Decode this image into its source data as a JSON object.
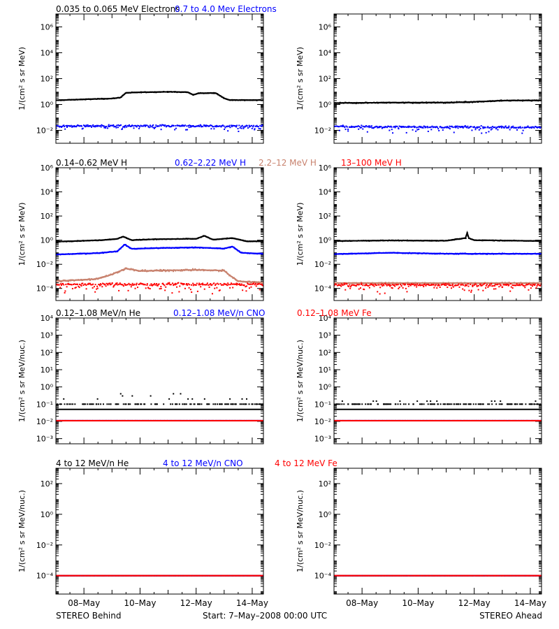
{
  "rows": [
    {
      "title_segments": [
        {
          "text": "0.035 to 0.065 MeV Electrons",
          "color": "#000000"
        },
        {
          "text": "0.7 to 4.0 Mev Electrons",
          "color": "#0000ff"
        }
      ],
      "ylabel": "1/(cm² s sr MeV)",
      "yticks": [
        {
          "label": "10⁶",
          "exp": 6
        },
        {
          "label": "10⁴",
          "exp": 4
        },
        {
          "label": "10²",
          "exp": 2
        },
        {
          "label": "10⁰",
          "exp": 0
        },
        {
          "label": "10⁻²",
          "exp": -2
        }
      ]
    },
    {
      "title_segments": [
        {
          "text": "0.14–0.62 MeV H",
          "color": "#000000"
        },
        {
          "text": "0.62–2.22 MeV H",
          "color": "#0000ff"
        },
        {
          "text": "2.2–12 MeV H",
          "color": "#c8826e"
        },
        {
          "text": "13–100 MeV H",
          "color": "#ff0000"
        }
      ],
      "ylabel": "1/(cm² s sr MeV)",
      "yticks": [
        {
          "label": "10⁶",
          "exp": 6
        },
        {
          "label": "10⁴",
          "exp": 4
        },
        {
          "label": "10²",
          "exp": 2
        },
        {
          "label": "10⁰",
          "exp": 0
        },
        {
          "label": "10⁻²",
          "exp": -2
        },
        {
          "label": "10⁻⁴",
          "exp": -4
        }
      ]
    },
    {
      "title_segments": [
        {
          "text": "0.12–1.08 MeV/n He",
          "color": "#000000"
        },
        {
          "text": "0.12–1.08 MeV/n CNO",
          "color": "#0000ff"
        },
        {
          "text": "0.12–1.08 MeV Fe",
          "color": "#ff0000"
        }
      ],
      "ylabel": "1/(cm² s sr MeV/nuc.)",
      "yticks": [
        {
          "label": "10⁴",
          "exp": 4
        },
        {
          "label": "10³",
          "exp": 3
        },
        {
          "label": "10²",
          "exp": 2
        },
        {
          "label": "10¹",
          "exp": 1
        },
        {
          "label": "10⁰",
          "exp": 0
        },
        {
          "label": "10⁻¹",
          "exp": -1
        },
        {
          "label": "10⁻²",
          "exp": -2
        },
        {
          "label": "10⁻³",
          "exp": -3
        }
      ]
    },
    {
      "title_segments": [
        {
          "text": "4 to 12 MeV/n He",
          "color": "#000000"
        },
        {
          "text": "4 to 12 MeV/n CNO",
          "color": "#0000ff"
        },
        {
          "text": "4 to 12 MeV Fe",
          "color": "#ff0000"
        }
      ],
      "ylabel": "1/(cm² s sr MeV/nuc.)",
      "yticks": [
        {
          "label": "10²",
          "exp": 2
        },
        {
          "label": "10⁰",
          "exp": 0
        },
        {
          "label": "10⁻²",
          "exp": -2
        },
        {
          "label": "10⁻⁴",
          "exp": -4
        }
      ]
    }
  ],
  "xticks": [
    {
      "label": "08–May",
      "day": 1
    },
    {
      "label": "10–May",
      "day": 3
    },
    {
      "label": "12–May",
      "day": 5
    },
    {
      "label": "14–May",
      "day": 7
    }
  ],
  "footer": {
    "left": "STEREO Behind",
    "center": "Start:  7–May–2008 00:00 UTC",
    "right": "STEREO Ahead"
  },
  "chart_data": [
    {
      "type": "scatter",
      "spacecraft": "STEREO Behind",
      "panel": "electrons",
      "x_unit": "days since 7-May-2008 00:00 UTC",
      "xlim": [
        0,
        7.4
      ],
      "ylog": true,
      "ylim_exp": [
        -3,
        7
      ],
      "series": [
        {
          "name": "0.035 to 0.065 MeV Electrons",
          "color": "#000000",
          "noise": 0.03,
          "scatter": 0.01,
          "x": [
            0,
            1,
            2,
            2.3,
            2.5,
            3,
            4,
            4.7,
            4.9,
            5.1,
            5.7,
            6,
            6.2,
            7.4
          ],
          "y": [
            2.1,
            2.5,
            2.9,
            3.4,
            8,
            8.8,
            9.5,
            9,
            5.5,
            7.5,
            7.8,
            3,
            2.2,
            2.2
          ]
        },
        {
          "name": "0.7 to 4.0 Mev Electrons",
          "color": "#0000ff",
          "noise": 0.1,
          "scatter": 0.25,
          "x": [
            0,
            7.4
          ],
          "y": [
            0.022,
            0.022
          ]
        }
      ]
    },
    {
      "type": "scatter",
      "spacecraft": "STEREO Ahead",
      "panel": "electrons",
      "x_unit": "days since 7-May-2008 00:00 UTC",
      "xlim": [
        0,
        7.4
      ],
      "ylog": true,
      "ylim_exp": [
        -3,
        7
      ],
      "series": [
        {
          "name": "0.035 to 0.065 MeV Electrons",
          "color": "#000000",
          "noise": 0.04,
          "scatter": 0.02,
          "x": [
            0,
            2,
            4,
            5,
            6,
            7.4
          ],
          "y": [
            1.3,
            1.4,
            1.4,
            1.6,
            2.0,
            2.1
          ]
        },
        {
          "name": "0.7 to 4.0 Mev Electrons",
          "color": "#0000ff",
          "noise": 0.1,
          "scatter": 0.25,
          "x": [
            0,
            7.4
          ],
          "y": [
            0.02,
            0.017
          ]
        }
      ]
    },
    {
      "type": "scatter",
      "spacecraft": "STEREO Behind",
      "panel": "protons",
      "x_unit": "days since 7-May-2008 00:00 UTC",
      "xlim": [
        0,
        7.4
      ],
      "ylog": true,
      "ylim_exp": [
        -5,
        6
      ],
      "series": [
        {
          "name": "0.14-0.62 MeV H",
          "color": "#000000",
          "noise": 0.03,
          "scatter": 0.01,
          "x": [
            0,
            1.6,
            2.2,
            2.4,
            2.7,
            3.5,
            5,
            5.3,
            5.6,
            6.3,
            6.8,
            7.4
          ],
          "y": [
            0.75,
            1.0,
            1.3,
            2.0,
            1.0,
            1.2,
            1.3,
            2.3,
            1.1,
            1.5,
            0.8,
            0.8
          ]
        },
        {
          "name": "0.62-2.22 MeV H",
          "color": "#0000ff",
          "noise": 0.04,
          "scatter": 0.01,
          "x": [
            0,
            1.5,
            2.2,
            2.45,
            2.7,
            3.5,
            5,
            6,
            6.3,
            6.6,
            7.4
          ],
          "y": [
            0.065,
            0.085,
            0.12,
            0.45,
            0.19,
            0.22,
            0.25,
            0.2,
            0.3,
            0.09,
            0.075
          ]
        },
        {
          "name": "2.2-12 MeV H",
          "color": "#c8826e",
          "noise": 0.08,
          "scatter": 0.03,
          "x": [
            0,
            1.4,
            1.9,
            2.5,
            3.0,
            5.0,
            6.0,
            6.2,
            6.5,
            7.4
          ],
          "y": [
            0.0004,
            0.0006,
            0.0012,
            0.0045,
            0.0028,
            0.0035,
            0.003,
            0.0012,
            0.0004,
            0.0003
          ]
        },
        {
          "name": "13-100 MeV H",
          "color": "#ff0000",
          "noise": 0.12,
          "scatter": 0.4,
          "x": [
            0,
            7.4
          ],
          "y": [
            0.00022,
            0.00022
          ]
        }
      ]
    },
    {
      "type": "scatter",
      "spacecraft": "STEREO Ahead",
      "panel": "protons",
      "x_unit": "days since 7-May-2008 00:00 UTC",
      "xlim": [
        0,
        7.4
      ],
      "ylog": true,
      "ylim_exp": [
        -5,
        6
      ],
      "series": [
        {
          "name": "0.14-0.62 MeV H",
          "color": "#000000",
          "noise": 0.03,
          "scatter": 0.01,
          "x": [
            0,
            2,
            4,
            4.7,
            4.75,
            4.8,
            5,
            7.4
          ],
          "y": [
            0.85,
            0.95,
            0.9,
            1.5,
            4.2,
            1.5,
            1.0,
            0.85
          ]
        },
        {
          "name": "0.62-2.22 MeV H",
          "color": "#0000ff",
          "noise": 0.04,
          "scatter": 0.01,
          "x": [
            0,
            2,
            4,
            7.4
          ],
          "y": [
            0.07,
            0.09,
            0.075,
            0.075
          ]
        },
        {
          "name": "2.2-12 MeV H",
          "color": "#c8826e",
          "noise": 0.05,
          "scatter": 0.02,
          "x": [
            0,
            7.4
          ],
          "y": [
            0.00028,
            0.00028
          ]
        },
        {
          "name": "13-100 MeV H",
          "color": "#ff0000",
          "noise": 0.12,
          "scatter": 0.4,
          "x": [
            0,
            7.4
          ],
          "y": [
            0.0002,
            0.0002
          ]
        }
      ]
    },
    {
      "type": "scatter",
      "spacecraft": "STEREO Behind",
      "panel": "heavy-ions-low",
      "x_unit": "days since 7-May-2008 00:00 UTC",
      "xlim": [
        0,
        7.4
      ],
      "ylog": true,
      "ylim_exp": [
        -3.3,
        4
      ],
      "series": [
        {
          "name": "0.12-1.08 MeV/n He",
          "color": "#000000",
          "noise": 0.02,
          "scatter": 0.0,
          "quantized": [
            0.1,
            0.2,
            0.3,
            0.4
          ],
          "x": [
            0,
            7.4
          ],
          "y": [
            0.1,
            0.1
          ]
        },
        {
          "name": "0.12-1.08 MeV/n CNO",
          "color": "#0000ff",
          "noise": 0.0,
          "scatter": 0.0,
          "x": [
            0,
            7.4
          ],
          "y": [
            0.011,
            0.011
          ]
        },
        {
          "name": "0.12-1.08 MeV Fe",
          "color": "#ff0000",
          "noise": 0.0,
          "scatter": 0.0,
          "x": [
            0,
            7.4
          ],
          "y": [
            0.011,
            0.011
          ]
        }
      ]
    },
    {
      "type": "scatter",
      "spacecraft": "STEREO Ahead",
      "panel": "heavy-ions-low",
      "x_unit": "days since 7-May-2008 00:00 UTC",
      "xlim": [
        0,
        7.4
      ],
      "ylog": true,
      "ylim_exp": [
        -3.3,
        4
      ],
      "series": [
        {
          "name": "0.12-1.08 MeV/n He",
          "color": "#000000",
          "noise": 0.02,
          "scatter": 0.0,
          "quantized": [
            0.1,
            0.15
          ],
          "x": [
            0,
            7.4
          ],
          "y": [
            0.1,
            0.1
          ]
        },
        {
          "name": "0.12-1.08 MeV/n CNO",
          "color": "#0000ff",
          "noise": 0.0,
          "scatter": 0.0,
          "x": [
            0,
            7.4
          ],
          "y": [
            0.011,
            0.011
          ]
        },
        {
          "name": "0.12-1.08 MeV Fe",
          "color": "#ff0000",
          "noise": 0.0,
          "scatter": 0.0,
          "x": [
            0,
            7.4
          ],
          "y": [
            0.011,
            0.011
          ]
        }
      ]
    },
    {
      "type": "scatter",
      "spacecraft": "STEREO Behind",
      "panel": "heavy-ions-high",
      "x_unit": "days since 7-May-2008 00:00 UTC",
      "xlim": [
        0,
        7.4
      ],
      "ylog": true,
      "ylim_exp": [
        -5.2,
        3
      ],
      "series": [
        {
          "name": "4 to 12 MeV/n He",
          "color": "#000000",
          "noise": 0.0,
          "scatter": 0.0,
          "x": [
            0,
            7.4
          ],
          "y": [
            0.0001,
            0.0001
          ]
        },
        {
          "name": "4 to 12 MeV/n CNO",
          "color": "#0000ff",
          "noise": 0.0,
          "scatter": 0.0,
          "x": [
            0,
            7.4
          ],
          "y": [
            0.0001,
            0.0001
          ]
        },
        {
          "name": "4 to 12 MeV Fe",
          "color": "#ff0000",
          "noise": 0.0,
          "scatter": 0.0,
          "x": [
            0,
            7.4
          ],
          "y": [
            0.0001,
            0.0001
          ]
        }
      ]
    },
    {
      "type": "scatter",
      "spacecraft": "STEREO Ahead",
      "panel": "heavy-ions-high",
      "x_unit": "days since 7-May-2008 00:00 UTC",
      "xlim": [
        0,
        7.4
      ],
      "ylog": true,
      "ylim_exp": [
        -5.2,
        3
      ],
      "series": [
        {
          "name": "4 to 12 MeV/n He",
          "color": "#000000",
          "noise": 0.0,
          "scatter": 0.0,
          "x": [
            0,
            7.4
          ],
          "y": [
            0.0001,
            0.0001
          ]
        },
        {
          "name": "4 to 12 MeV/n CNO",
          "color": "#0000ff",
          "noise": 0.0,
          "scatter": 0.0,
          "x": [
            0,
            7.4
          ],
          "y": [
            0.0001,
            0.0001
          ]
        },
        {
          "name": "4 to 12 MeV Fe",
          "color": "#ff0000",
          "noise": 0.0,
          "scatter": 0.0,
          "x": [
            0,
            7.4
          ],
          "y": [
            0.0001,
            0.0001
          ]
        }
      ]
    }
  ]
}
